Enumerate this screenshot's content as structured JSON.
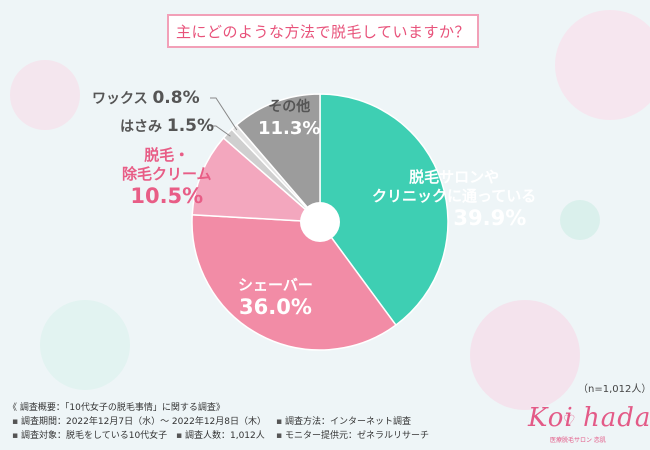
{
  "title": "主にどのような方法で脱毛していますか？",
  "sample_note": "（n=1,012人）",
  "chart_data": {
    "type": "pie",
    "slices": [
      {
        "label": "脱毛サロンやクリニックに通っている",
        "label_lines": [
          "脱毛サロンや",
          "クリニックに通っている"
        ],
        "value": 39.9,
        "display": "39.9%",
        "color": "#3ecfb3"
      },
      {
        "label": "シェーバー",
        "label_lines": [
          "シェーバー"
        ],
        "value": 36.0,
        "display": "36.0%",
        "color": "#f28ca6"
      },
      {
        "label": "脱毛・除毛クリーム",
        "label_lines": [
          "脱毛・",
          "除毛クリーム"
        ],
        "value": 10.5,
        "display": "10.5%",
        "color": "#f3a7be"
      },
      {
        "label": "はさみ",
        "label_lines": [
          "はさみ"
        ],
        "value": 1.5,
        "display": "1.5%",
        "color": "#cfcfcf"
      },
      {
        "label": "ワックス",
        "label_lines": [
          "ワックス"
        ],
        "value": 0.8,
        "display": "0.8%",
        "color": "#e3e3e3"
      },
      {
        "label": "その他",
        "label_lines": [
          "その他"
        ],
        "value": 11.3,
        "display": "11.3%",
        "color": "#9c9c9c"
      }
    ],
    "start": "12 o'clock",
    "direction": "clockwise",
    "donut_hole": true
  },
  "footer": {
    "overview": "《 調査概要：「10代女子の脱毛事情」に関する調査》",
    "period": "調査期間：2022年12月7日（水）～ 2022年12月8日（木）",
    "method": "調査方法：インターネット調査",
    "target": "調査対象：脱毛をしている10代女子",
    "count": "調査人数：1,012人",
    "provider": "モニター提供元：ゼネラルリサーチ",
    "bullet": "▪"
  },
  "logo": {
    "text": "Koi hada",
    "heart": "♡",
    "sub": "医療脱毛サロン 恋肌"
  }
}
